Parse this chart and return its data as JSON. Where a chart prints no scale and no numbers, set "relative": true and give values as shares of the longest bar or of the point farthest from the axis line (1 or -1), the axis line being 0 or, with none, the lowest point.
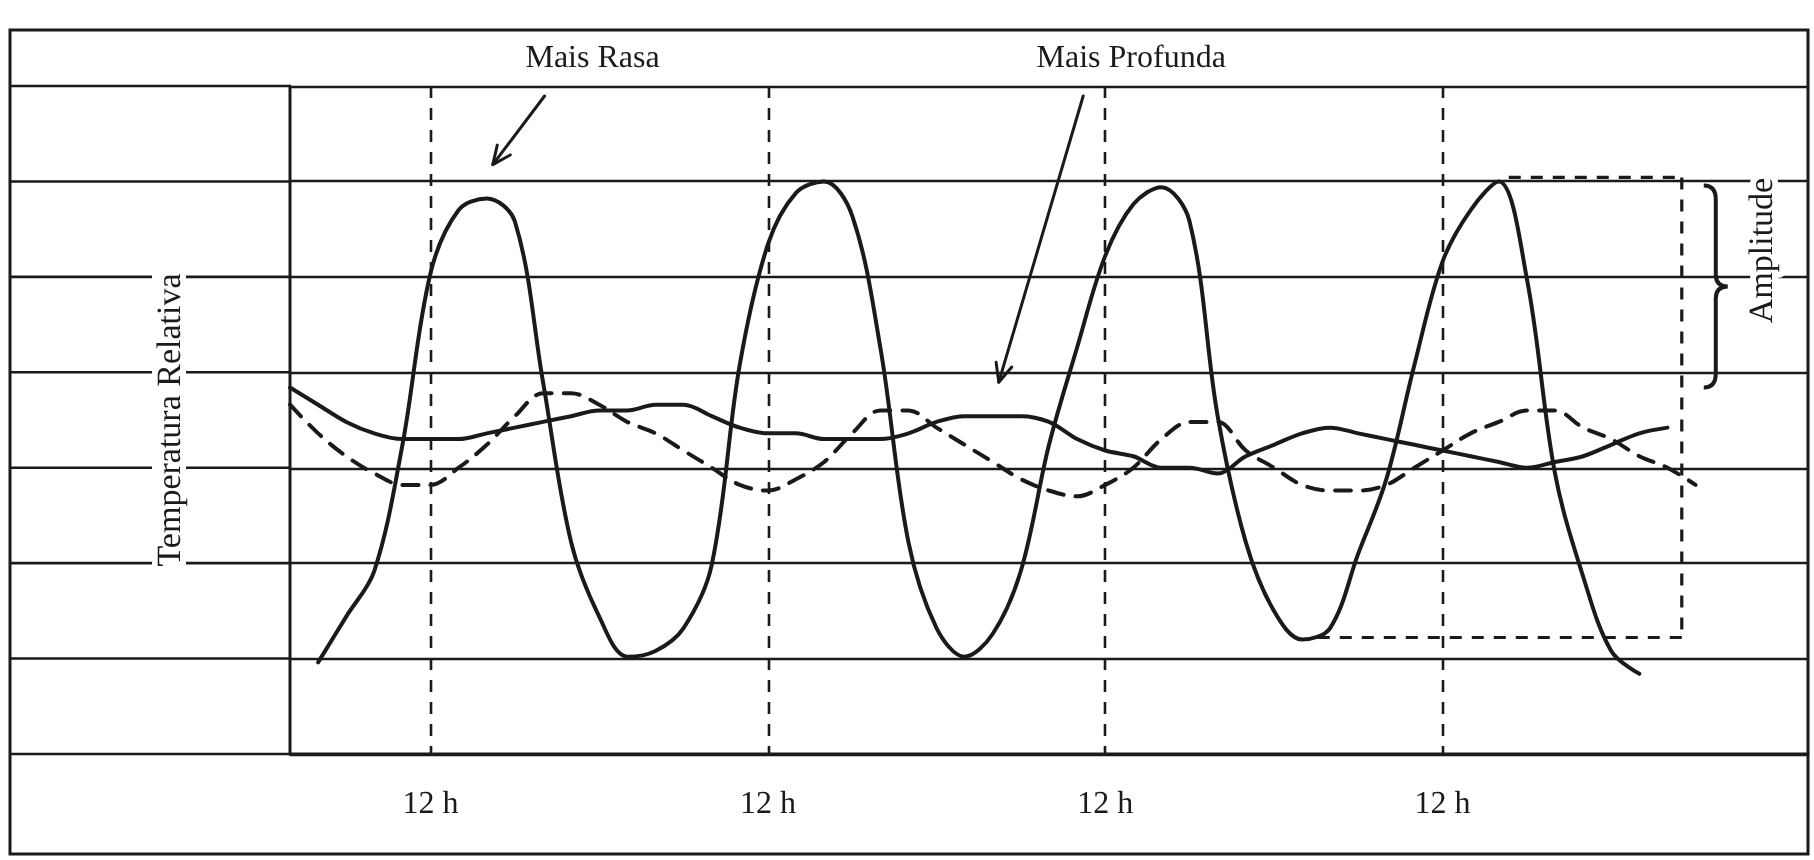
{
  "chart_data": {
    "type": "line",
    "ylabel": "Temperatura Relativa",
    "relative": true,
    "categories": [
      null,
      null,
      null,
      null,
      null,
      "12 h",
      null,
      null,
      null,
      null,
      null,
      null,
      null,
      null,
      null,
      null,
      null,
      "12 h",
      null,
      null,
      null,
      null,
      null,
      null,
      null,
      null,
      null,
      null,
      null,
      "12 h",
      null,
      null,
      null,
      null,
      null,
      null,
      null,
      null,
      null,
      null,
      null,
      "12 h",
      null,
      null,
      null,
      null,
      null,
      null,
      null,
      null,
      null,
      null,
      null,
      null,
      null
    ],
    "grid": true,
    "marker": "none",
    "annotations": [
      "Amplitude"
    ],
    "series": [
      {
        "name": "Mais Rasa",
        "color": "#1a1a1a",
        "line_style": "solid",
        "values": [
          null,
          0.16,
          0.24,
          0.32,
          0.54,
          0.84,
          0.95,
          0.97,
          0.93,
          0.65,
          0.37,
          0.24,
          0.17,
          0.18,
          0.22,
          0.33,
          0.68,
          0.89,
          0.98,
          1.0,
          0.94,
          0.71,
          0.37,
          0.22,
          0.17,
          0.21,
          0.32,
          0.54,
          0.71,
          0.87,
          0.96,
          0.99,
          0.93,
          0.59,
          0.37,
          0.25,
          0.2,
          0.22,
          0.35,
          0.48,
          0.68,
          0.86,
          0.95,
          1.0,
          0.83,
          0.49,
          0.31,
          0.18,
          0.14,
          null,
          null,
          null,
          null,
          null,
          null
        ]
      },
      {
        "color": "#1a1a1a",
        "line_style": "dashed",
        "values": [
          0.61,
          0.56,
          0.52,
          0.49,
          0.47,
          0.47,
          0.5,
          0.54,
          0.59,
          0.63,
          0.63,
          0.61,
          0.58,
          0.56,
          0.53,
          0.5,
          0.47,
          0.46,
          0.48,
          0.51,
          0.56,
          0.6,
          0.6,
          0.57,
          0.54,
          0.51,
          0.48,
          0.46,
          0.45,
          0.47,
          0.5,
          0.55,
          0.58,
          0.58,
          0.53,
          0.5,
          0.47,
          0.46,
          0.46,
          0.47,
          0.5,
          0.53,
          0.56,
          0.58,
          0.6,
          0.6,
          0.57,
          0.55,
          0.52,
          0.5,
          0.47,
          null,
          null,
          null,
          null
        ]
      },
      {
        "name": "Mais Profunda",
        "color": "#1a1a1a",
        "line_style": "solid",
        "values": [
          0.64,
          0.61,
          0.58,
          0.56,
          0.55,
          0.55,
          0.55,
          0.56,
          0.57,
          0.58,
          0.59,
          0.6,
          0.6,
          0.61,
          0.61,
          0.59,
          0.57,
          0.56,
          0.56,
          0.55,
          0.55,
          0.55,
          0.56,
          0.58,
          0.59,
          0.59,
          0.59,
          0.58,
          0.55,
          0.53,
          0.52,
          0.5,
          0.5,
          0.49,
          0.52,
          0.54,
          0.56,
          0.57,
          0.56,
          0.55,
          0.54,
          0.53,
          0.52,
          0.51,
          0.5,
          0.51,
          0.52,
          0.54,
          0.56,
          0.57,
          null,
          null,
          null,
          null,
          null
        ]
      }
    ]
  }
}
